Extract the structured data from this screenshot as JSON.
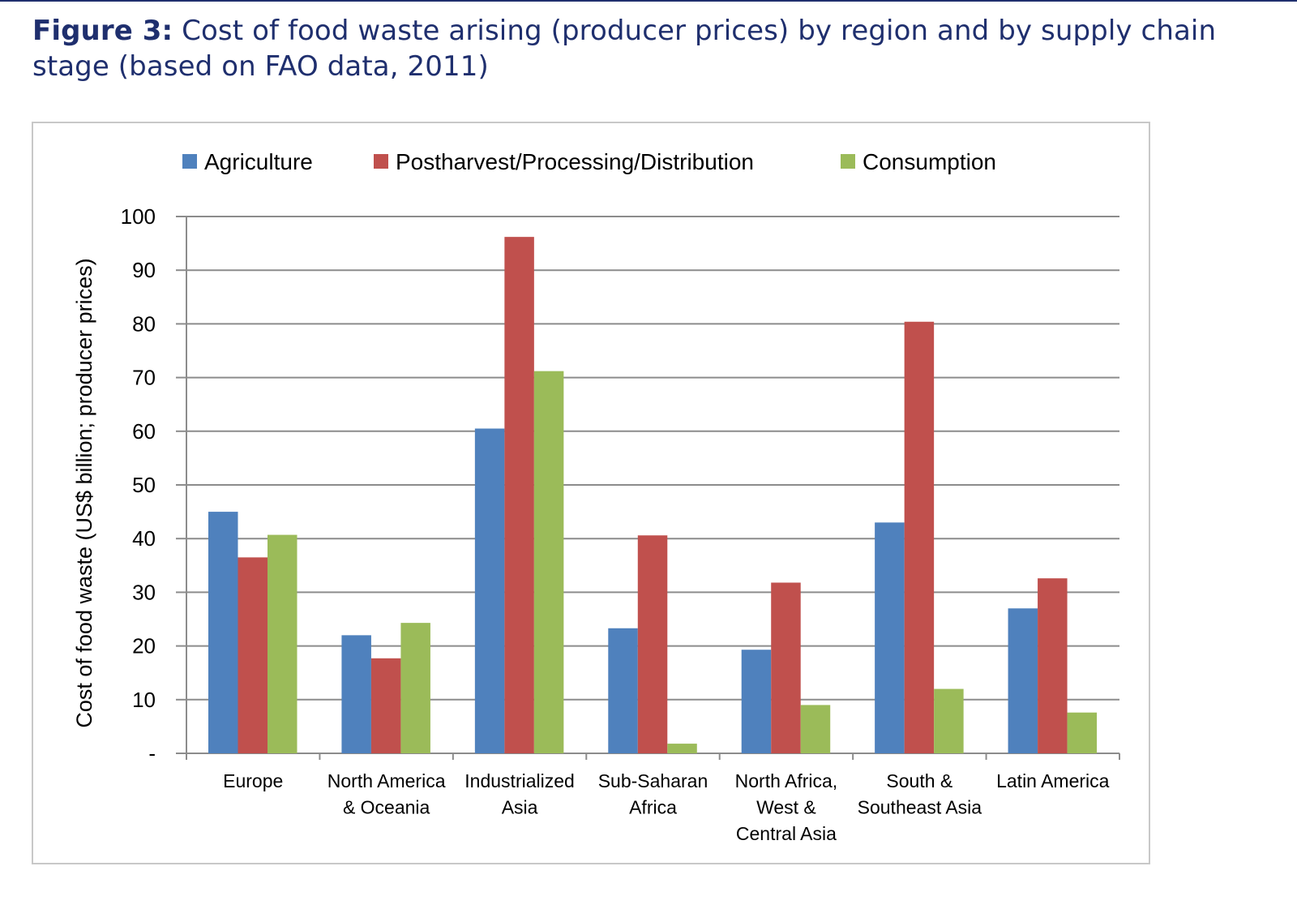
{
  "figure": {
    "label": "Figure 3:",
    "title": "Cost of food waste arising (producer prices) by region and by supply chain stage (based on FAO data, 2011)"
  },
  "chart_data": {
    "type": "bar",
    "title": "",
    "xlabel": "",
    "ylabel": "Cost of food waste (US$ billion; producer prices)",
    "ylim": [
      0,
      100
    ],
    "yticks": [
      "-",
      "10",
      "20",
      "30",
      "40",
      "50",
      "60",
      "70",
      "80",
      "90",
      "100"
    ],
    "grid": true,
    "legend_position": "top",
    "categories": [
      [
        "Europe"
      ],
      [
        "North America",
        "& Oceania"
      ],
      [
        "Industrialized",
        "Asia"
      ],
      [
        "Sub-Saharan",
        "Africa"
      ],
      [
        "North Africa,",
        "West &",
        "Central Asia"
      ],
      [
        "South &",
        "Southeast Asia"
      ],
      [
        "Latin America"
      ]
    ],
    "series": [
      {
        "name": "Agriculture",
        "color": "#4f81bd",
        "values": [
          45,
          22,
          60.5,
          23.3,
          19.3,
          43,
          27
        ]
      },
      {
        "name": "Postharvest/Processing/Distribution",
        "color": "#c0504d",
        "values": [
          36.5,
          17.7,
          96.2,
          40.6,
          31.8,
          80.4,
          32.6
        ]
      },
      {
        "name": "Consumption",
        "color": "#9bbb59",
        "values": [
          40.7,
          24.3,
          71.2,
          1.8,
          9,
          12,
          7.6
        ]
      }
    ]
  }
}
